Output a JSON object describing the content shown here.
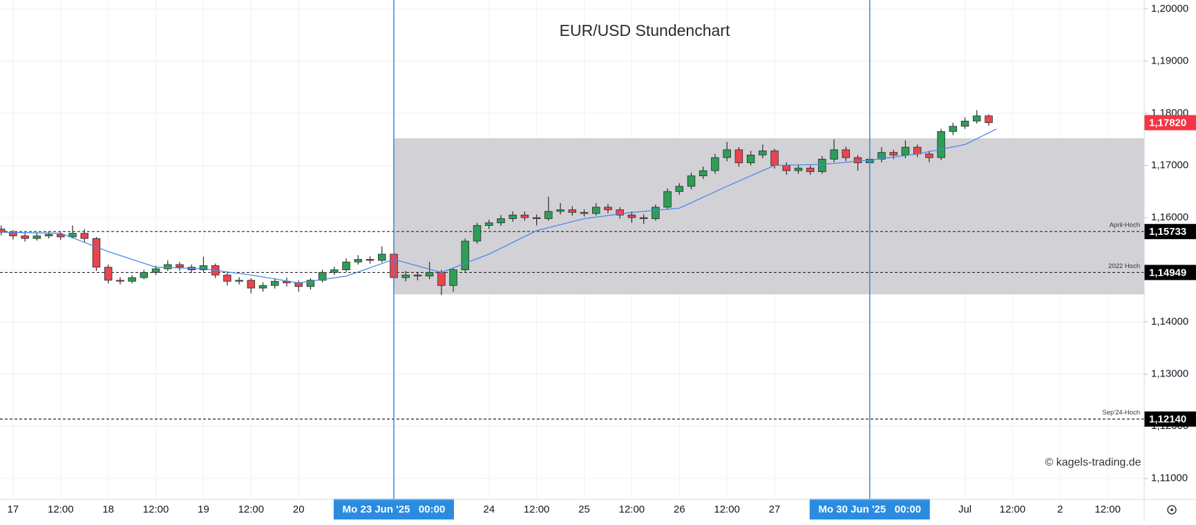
{
  "chart_data": {
    "type": "candlestick",
    "title": "EUR/USD Stundenchart",
    "watermark": "© kagels-trading.de",
    "xlim": [
      -3.3,
      285.2
    ],
    "ylim": [
      1.106,
      1.2017
    ],
    "grid": true,
    "colors": {
      "up": "#2e9e57",
      "down": "#e8454f",
      "wick": "#2a2a2a",
      "zone": "#d0cfd4",
      "marker": "#2a8ce0",
      "average": "#4a8ae6",
      "price": "#f23645"
    },
    "xticks": [
      {
        "value": 0,
        "label": "17"
      },
      {
        "value": 12,
        "label": "12:00"
      },
      {
        "value": 24,
        "label": "18"
      },
      {
        "value": 36,
        "label": "12:00"
      },
      {
        "value": 48,
        "label": "19"
      },
      {
        "value": 60,
        "label": "12:00"
      },
      {
        "value": 72,
        "label": "20"
      },
      {
        "value": 120,
        "label": "24"
      },
      {
        "value": 132,
        "label": "12:00"
      },
      {
        "value": 144,
        "label": "25"
      },
      {
        "value": 156,
        "label": "12:00"
      },
      {
        "value": 168,
        "label": "26"
      },
      {
        "value": 180,
        "label": "12:00"
      },
      {
        "value": 192,
        "label": "27"
      },
      {
        "value": 240,
        "label": "Jul"
      },
      {
        "value": 252,
        "label": "12:00"
      },
      {
        "value": 264,
        "label": "2"
      },
      {
        "value": 276,
        "label": "12:00"
      }
    ],
    "yticks": [
      {
        "value": 1.11,
        "label": "1,11000"
      },
      {
        "value": 1.12,
        "label": "1,12000"
      },
      {
        "value": 1.13,
        "label": "1,13000"
      },
      {
        "value": 1.14,
        "label": "1,14000"
      },
      {
        "value": 1.15,
        "label": "1,15000"
      },
      {
        "value": 1.16,
        "label": "1,16000"
      },
      {
        "value": 1.17,
        "label": "1,17000"
      },
      {
        "value": 1.18,
        "label": "1,18000"
      },
      {
        "value": 1.19,
        "label": "1,19000"
      },
      {
        "value": 1.2,
        "label": "1,20000"
      }
    ],
    "zone": {
      "x_start": 96,
      "ylim": [
        1.1453,
        1.1752
      ]
    },
    "markers": [
      {
        "x": 96,
        "label": "Mo 23 Jun '25   00:00"
      },
      {
        "x": 216,
        "label": "Mo 30 Jun '25   00:00"
      }
    ],
    "levels": [
      {
        "name": "April-Hoch",
        "value": 1.15733,
        "label": "1,15733"
      },
      {
        "name": "2022 Hoch",
        "value": 1.14949,
        "label": "1,14949"
      },
      {
        "name": "Sep'24-Hoch",
        "value": 1.1214,
        "label": "1,12140"
      }
    ],
    "last_price": {
      "value": 1.1782,
      "label": "1,17820"
    },
    "x": [
      -3,
      0,
      3,
      6,
      9,
      12,
      15,
      18,
      21,
      24,
      27,
      30,
      33,
      36,
      39,
      42,
      45,
      48,
      51,
      54,
      57,
      60,
      63,
      66,
      69,
      72,
      75,
      78,
      81,
      84,
      87,
      90,
      93,
      96,
      99,
      102,
      105,
      108,
      111,
      114,
      117,
      120,
      123,
      126,
      129,
      132,
      135,
      138,
      141,
      144,
      147,
      150,
      153,
      156,
      159,
      162,
      165,
      168,
      171,
      174,
      177,
      180,
      183,
      186,
      189,
      192,
      195,
      198,
      201,
      204,
      207,
      210,
      213,
      216,
      219,
      222,
      225,
      228,
      231,
      234,
      237,
      240,
      243,
      246
    ],
    "open": [
      1.1578,
      1.1572,
      1.1565,
      1.156,
      1.1565,
      1.1568,
      1.1563,
      1.157,
      1.156,
      1.1505,
      1.148,
      1.1478,
      1.1485,
      1.1495,
      1.1502,
      1.151,
      1.1505,
      1.15,
      1.1508,
      1.149,
      1.1478,
      1.148,
      1.1465,
      1.147,
      1.1478,
      1.1475,
      1.1468,
      1.148,
      1.1495,
      1.15,
      1.1515,
      1.152,
      1.1518,
      1.153,
      1.1485,
      1.149,
      1.1488,
      1.1495,
      1.147,
      1.15,
      1.1555,
      1.1585,
      1.159,
      1.1598,
      1.1605,
      1.16,
      1.1598,
      1.1612,
      1.1615,
      1.161,
      1.1608,
      1.162,
      1.1615,
      1.1605,
      1.16,
      1.1598,
      1.162,
      1.165,
      1.166,
      1.168,
      1.169,
      1.1715,
      1.173,
      1.1705,
      1.172,
      1.1728,
      1.17,
      1.169,
      1.1695,
      1.1688,
      1.1712,
      1.173,
      1.1715,
      1.1705,
      1.1712,
      1.1725,
      1.172,
      1.1735,
      1.1722,
      1.1715,
      1.1765,
      1.1775,
      1.1785,
      1.1795
    ],
    "high": [
      1.1585,
      1.1576,
      1.157,
      1.1571,
      1.1574,
      1.1573,
      1.1585,
      1.1578,
      1.1563,
      1.151,
      1.1486,
      1.149,
      1.15,
      1.1508,
      1.1518,
      1.1515,
      1.151,
      1.1525,
      1.1512,
      1.1495,
      1.1486,
      1.1484,
      1.1476,
      1.1484,
      1.1485,
      1.148,
      1.1484,
      1.15,
      1.1506,
      1.1522,
      1.1528,
      1.1526,
      1.1545,
      1.1534,
      1.1498,
      1.1496,
      1.1515,
      1.15,
      1.1504,
      1.156,
      1.159,
      1.1596,
      1.1605,
      1.1612,
      1.1612,
      1.1606,
      1.164,
      1.1628,
      1.1622,
      1.1616,
      1.1628,
      1.1626,
      1.162,
      1.1612,
      1.1606,
      1.1625,
      1.1656,
      1.1666,
      1.1686,
      1.1698,
      1.1722,
      1.1745,
      1.1735,
      1.1728,
      1.174,
      1.1732,
      1.1706,
      1.1702,
      1.17,
      1.1718,
      1.175,
      1.1736,
      1.172,
      1.1718,
      1.1735,
      1.173,
      1.1748,
      1.174,
      1.1728,
      1.177,
      1.1782,
      1.1792,
      1.1806,
      1.1798
    ],
    "low": [
      1.1566,
      1.1558,
      1.1554,
      1.1556,
      1.156,
      1.1557,
      1.156,
      1.1552,
      1.1498,
      1.1474,
      1.1472,
      1.1474,
      1.1482,
      1.149,
      1.1498,
      1.1498,
      1.1494,
      1.1496,
      1.1484,
      1.147,
      1.1472,
      1.1455,
      1.1458,
      1.1464,
      1.1468,
      1.1458,
      1.1462,
      1.1476,
      1.149,
      1.1496,
      1.151,
      1.1512,
      1.1514,
      1.1478,
      1.1478,
      1.148,
      1.1482,
      1.1452,
      1.1458,
      1.1496,
      1.155,
      1.1578,
      1.1584,
      1.1592,
      1.1594,
      1.1585,
      1.1594,
      1.1606,
      1.1604,
      1.1602,
      1.1604,
      1.1608,
      1.1598,
      1.159,
      1.1588,
      1.1594,
      1.1616,
      1.1644,
      1.1654,
      1.1674,
      1.1684,
      1.1708,
      1.1698,
      1.17,
      1.1714,
      1.1694,
      1.1682,
      1.1684,
      1.1682,
      1.1684,
      1.1706,
      1.1708,
      1.169,
      1.1698,
      1.1706,
      1.1712,
      1.1714,
      1.1716,
      1.1706,
      1.171,
      1.1758,
      1.177,
      1.178,
      1.1776
    ],
    "close": [
      1.1572,
      1.1565,
      1.156,
      1.1565,
      1.1568,
      1.1563,
      1.157,
      1.156,
      1.1505,
      1.148,
      1.1478,
      1.1485,
      1.1495,
      1.1502,
      1.151,
      1.1505,
      1.15,
      1.1508,
      1.149,
      1.1478,
      1.148,
      1.1465,
      1.147,
      1.1478,
      1.1475,
      1.1468,
      1.148,
      1.1495,
      1.15,
      1.1515,
      1.152,
      1.1518,
      1.153,
      1.1485,
      1.149,
      1.1488,
      1.1495,
      1.147,
      1.15,
      1.1555,
      1.1585,
      1.159,
      1.1598,
      1.1605,
      1.16,
      1.1598,
      1.1612,
      1.1615,
      1.161,
      1.1608,
      1.162,
      1.1615,
      1.1605,
      1.16,
      1.1598,
      1.162,
      1.165,
      1.166,
      1.168,
      1.169,
      1.1715,
      1.173,
      1.1705,
      1.172,
      1.1728,
      1.17,
      1.169,
      1.1695,
      1.1688,
      1.1712,
      1.173,
      1.1715,
      1.1705,
      1.1712,
      1.1725,
      1.172,
      1.1735,
      1.1722,
      1.1715,
      1.1765,
      1.1775,
      1.1785,
      1.1795,
      1.1782
    ],
    "moving_average": {
      "x": [
        -3,
        12,
        24,
        36,
        48,
        60,
        72,
        84,
        96,
        108,
        120,
        132,
        144,
        156,
        168,
        180,
        192,
        204,
        216,
        228,
        240,
        248
      ],
      "values": [
        1.1572,
        1.157,
        1.1535,
        1.1505,
        1.1502,
        1.149,
        1.1475,
        1.1488,
        1.152,
        1.1495,
        1.153,
        1.1575,
        1.1598,
        1.161,
        1.1618,
        1.166,
        1.17,
        1.1702,
        1.171,
        1.1722,
        1.174,
        1.177
      ]
    }
  }
}
